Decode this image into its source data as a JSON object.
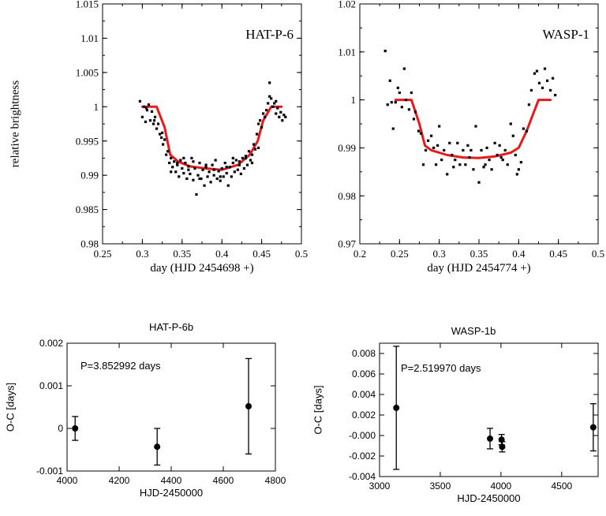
{
  "chart_data": [
    {
      "id": "hatp6",
      "type": "scatter",
      "title": "HAT-P-6",
      "xlabel": "day (HJD 2454698 +)",
      "ylabel": "relative brightness",
      "xlim": [
        0.25,
        0.5
      ],
      "ylim": [
        0.98,
        1.015
      ],
      "xticks": [
        0.25,
        0.3,
        0.35,
        0.4,
        0.45,
        0.5
      ],
      "xtick_labels": [
        "0.25",
        "0.3",
        "0.35",
        "0.4",
        "0.45",
        "0.5"
      ],
      "yticks": [
        0.98,
        0.985,
        0.99,
        0.995,
        1.0,
        1.005,
        1.01,
        1.015
      ],
      "ytick_labels": [
        "0.98",
        "0.985",
        "0.99",
        "0.995",
        "1",
        "1.005",
        "1.01",
        "1.015"
      ],
      "model": {
        "color": "#e8191b",
        "x": [
          0.3,
          0.318,
          0.328,
          0.335,
          0.345,
          0.36,
          0.38,
          0.4,
          0.42,
          0.435,
          0.445,
          0.452,
          0.462,
          0.475
        ],
        "y": [
          1.0,
          1.0,
          0.997,
          0.993,
          0.992,
          0.9913,
          0.991,
          0.9908,
          0.9915,
          0.993,
          0.995,
          0.998,
          1.0,
          1.0
        ]
      },
      "points": {
        "x": [
          0.297,
          0.3,
          0.302,
          0.304,
          0.306,
          0.308,
          0.31,
          0.312,
          0.314,
          0.316,
          0.318,
          0.32,
          0.322,
          0.324,
          0.326,
          0.328,
          0.33,
          0.332,
          0.334,
          0.336,
          0.338,
          0.34,
          0.342,
          0.344,
          0.346,
          0.348,
          0.35,
          0.352,
          0.354,
          0.356,
          0.358,
          0.36,
          0.362,
          0.364,
          0.366,
          0.368,
          0.37,
          0.372,
          0.374,
          0.376,
          0.378,
          0.38,
          0.382,
          0.384,
          0.386,
          0.388,
          0.39,
          0.392,
          0.394,
          0.396,
          0.398,
          0.4,
          0.402,
          0.404,
          0.406,
          0.408,
          0.41,
          0.412,
          0.414,
          0.416,
          0.418,
          0.42,
          0.422,
          0.424,
          0.426,
          0.428,
          0.43,
          0.432,
          0.434,
          0.436,
          0.438,
          0.44,
          0.442,
          0.444,
          0.446,
          0.448,
          0.45,
          0.452,
          0.454,
          0.456,
          0.458,
          0.46,
          0.462,
          0.464,
          0.466,
          0.468,
          0.47,
          0.472,
          0.474,
          0.476,
          0.478,
          0.48,
          0.336,
          0.344,
          0.352,
          0.358,
          0.364,
          0.372,
          0.38,
          0.39,
          0.398,
          0.406,
          0.414,
          0.422,
          0.43,
          0.438,
          0.446,
          0.46,
          0.468,
          0.305,
          0.315,
          0.325
        ],
        "y": [
          1.0008,
          0.9985,
          1.0,
          0.9978,
          0.9995,
          1.0003,
          0.998,
          0.9993,
          0.9975,
          0.9985,
          0.9968,
          0.9975,
          0.996,
          0.9955,
          0.9945,
          0.9952,
          0.993,
          0.9935,
          0.9918,
          0.9925,
          0.9912,
          0.992,
          0.9905,
          0.9915,
          0.9898,
          0.9922,
          0.991,
          0.9903,
          0.9918,
          0.9895,
          0.9913,
          0.9902,
          0.9925,
          0.9893,
          0.991,
          0.9872,
          0.99,
          0.9918,
          0.9895,
          0.9908,
          0.9885,
          0.9912,
          0.9898,
          0.9905,
          0.989,
          0.9915,
          0.99,
          0.9922,
          0.9895,
          0.9906,
          0.9892,
          0.991,
          0.9898,
          0.9918,
          0.9903,
          0.9885,
          0.9912,
          0.9898,
          0.9918,
          0.9905,
          0.9922,
          0.9908,
          0.992,
          0.9902,
          0.9925,
          0.991,
          0.9928,
          0.9915,
          0.9935,
          0.9922,
          0.993,
          0.9945,
          0.9938,
          0.996,
          0.9975,
          0.998,
          0.997,
          0.999,
          0.9985,
          0.9995,
          1.0005,
          1.0035,
          1.0012,
          1.0,
          1.0005,
          0.999,
          0.9998,
          0.9985,
          0.9992,
          0.998,
          0.9988,
          0.9985,
          0.9905,
          0.9918,
          0.9925,
          0.9908,
          0.992,
          0.9895,
          0.9915,
          0.9908,
          0.9898,
          0.9912,
          0.9925,
          0.9915,
          0.9925,
          0.9918,
          0.994,
          1.0015,
          1.0008,
          0.9998,
          0.998,
          0.9962
        ]
      },
      "label_box": "top-right"
    },
    {
      "id": "wasp1",
      "type": "scatter",
      "title": "WASP-1",
      "xlabel": "day (HJD 2454774 +)",
      "ylabel": "",
      "xlim": [
        0.2,
        0.5
      ],
      "ylim": [
        0.97,
        1.02
      ],
      "xticks": [
        0.2,
        0.25,
        0.3,
        0.35,
        0.4,
        0.45,
        0.5
      ],
      "xtick_labels": [
        "0.2",
        "0.25",
        "0.3",
        "0.35",
        "0.4",
        "0.45",
        "0.5"
      ],
      "yticks": [
        0.97,
        0.98,
        0.99,
        1.0,
        1.01,
        1.02
      ],
      "ytick_labels": [
        "0.97",
        "0.98",
        "0.99",
        "1",
        "1.01",
        "1.02"
      ],
      "model": {
        "color": "#e8191b",
        "x": [
          0.245,
          0.265,
          0.275,
          0.282,
          0.29,
          0.31,
          0.33,
          0.35,
          0.37,
          0.39,
          0.4,
          0.41,
          0.418,
          0.425,
          0.44
        ],
        "y": [
          1.0,
          1.0,
          0.995,
          0.9905,
          0.9895,
          0.9885,
          0.988,
          0.9879,
          0.9882,
          0.989,
          0.99,
          0.9935,
          0.997,
          1.0,
          1.0
        ]
      },
      "points": {
        "x": [
          0.232,
          0.235,
          0.238,
          0.24,
          0.242,
          0.245,
          0.248,
          0.25,
          0.253,
          0.256,
          0.258,
          0.262,
          0.265,
          0.268,
          0.27,
          0.274,
          0.277,
          0.28,
          0.283,
          0.286,
          0.29,
          0.293,
          0.296,
          0.3,
          0.303,
          0.306,
          0.31,
          0.313,
          0.316,
          0.32,
          0.323,
          0.326,
          0.33,
          0.333,
          0.336,
          0.34,
          0.343,
          0.346,
          0.35,
          0.353,
          0.356,
          0.36,
          0.363,
          0.366,
          0.37,
          0.373,
          0.376,
          0.38,
          0.383,
          0.386,
          0.39,
          0.393,
          0.396,
          0.4,
          0.403,
          0.406,
          0.41,
          0.413,
          0.416,
          0.42,
          0.423,
          0.426,
          0.43,
          0.433,
          0.436,
          0.44,
          0.443,
          0.446,
          0.298,
          0.318,
          0.338,
          0.358,
          0.378,
          0.398
        ],
        "y": [
          1.0102,
          0.999,
          1.004,
          0.9995,
          0.994,
          0.9995,
          1.0025,
          1.0015,
          0.9985,
          1.0065,
          1.0,
          0.998,
          1.0015,
          0.996,
          0.9975,
          0.9935,
          0.993,
          0.9865,
          0.9895,
          0.9915,
          0.9925,
          0.99,
          0.9865,
          0.9945,
          0.9875,
          0.9895,
          0.9845,
          0.991,
          0.9885,
          0.9875,
          0.991,
          0.9865,
          0.9895,
          0.9865,
          0.9905,
          0.9895,
          0.9855,
          0.9945,
          0.9828,
          0.9895,
          0.986,
          0.99,
          0.9875,
          0.9855,
          0.991,
          0.9885,
          0.9905,
          0.9875,
          0.9895,
          0.9865,
          0.995,
          0.9925,
          0.9885,
          0.9855,
          0.987,
          0.994,
          0.9935,
          0.999,
          1.002,
          1.0055,
          1.006,
          1.0035,
          1.0025,
          1.0065,
          1.004,
          1.002,
          1.0045,
          1.001,
          0.9905,
          0.986,
          0.988,
          0.9865,
          0.988,
          0.9845
        ]
      },
      "label_box": "top-right"
    },
    {
      "id": "hatp6b",
      "type": "scatter",
      "title": "HAT-P-6b",
      "annotation": "P=3.852992 days",
      "xlabel": "HJD-2450000",
      "ylabel": "O-C [days]",
      "xlim": [
        4000,
        4800
      ],
      "ylim": [
        -0.001,
        0.002
      ],
      "xticks": [
        4000,
        4200,
        4400,
        4600,
        4800
      ],
      "xtick_labels": [
        "4000",
        "4200",
        "4400",
        "4600",
        "4800"
      ],
      "yticks": [
        -0.001,
        0.0,
        0.001,
        0.002
      ],
      "ytick_labels": [
        "-0.001",
        "0",
        "0.001",
        "0.002"
      ],
      "points": {
        "x": [
          4031,
          4346,
          4697
        ],
        "y": [
          0.0,
          -0.00043,
          0.00052
        ],
        "yerr": [
          0.00028,
          0.00043,
          0.00112
        ]
      }
    },
    {
      "id": "wasp1b",
      "type": "scatter",
      "title": "WASP-1b",
      "annotation": "P=2.519970 days",
      "xlabel": "HJD-2450000",
      "ylabel": "O-C [days]",
      "xlim": [
        3000,
        4800
      ],
      "ylim": [
        -0.004,
        0.009
      ],
      "xticks": [
        3000,
        3500,
        4000,
        4500
      ],
      "xtick_labels": [
        "3000",
        "3500",
        "4000",
        "4500"
      ],
      "yticks": [
        -0.004,
        -0.002,
        0.0,
        0.002,
        0.004,
        0.006,
        0.008
      ],
      "ytick_labels": [
        "-0.004",
        "-0.002",
        "-0.000",
        "0.002",
        "0.004",
        "0.006",
        "0.008"
      ],
      "points": {
        "x": [
          3138,
          3910,
          4005,
          4010,
          4760
        ],
        "y": [
          0.0027,
          -0.0003,
          -0.0004,
          -0.0011,
          0.0008
        ],
        "yerr": [
          0.006,
          0.001,
          0.0005,
          0.0005,
          0.0023
        ]
      }
    }
  ]
}
